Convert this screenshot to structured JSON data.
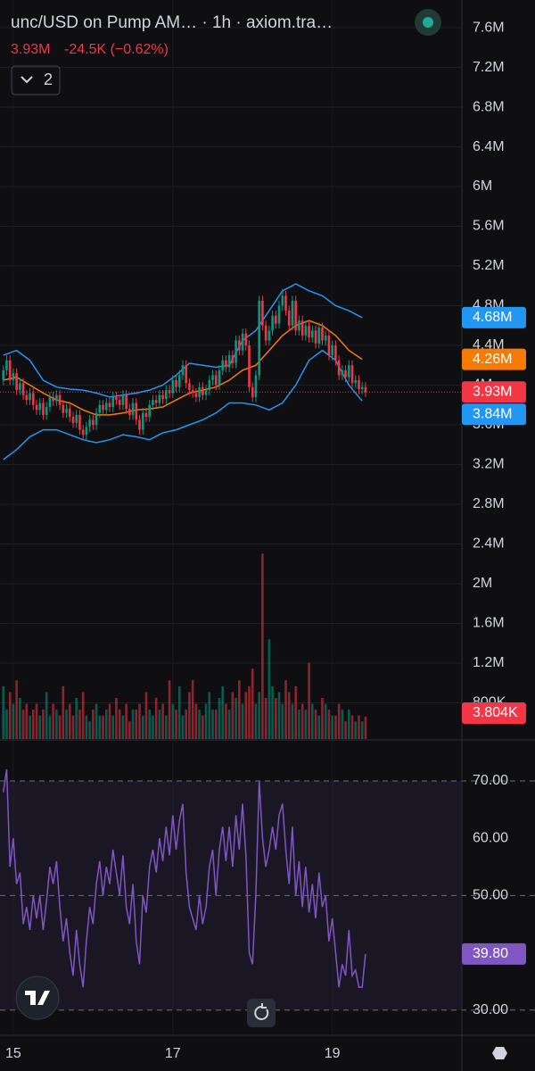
{
  "header": {
    "title": "unc/USD on Pump AM… · 1h · axiom.tra…",
    "change": "-24.5K (−0.62%)",
    "indicators_button": "2"
  },
  "chart_data": {
    "type": "candlestick",
    "up_color": "#089981",
    "down_color": "#f23645",
    "xlim": [
      -4,
      135
    ],
    "xticks": [
      {
        "value": 0,
        "label": "15"
      },
      {
        "value": 48,
        "label": "17"
      },
      {
        "value": 96,
        "label": "19"
      }
    ],
    "x": [
      -3,
      -2,
      -1,
      0,
      1,
      2,
      3,
      4,
      5,
      6,
      7,
      8,
      9,
      10,
      11,
      12,
      13,
      14,
      15,
      16,
      17,
      18,
      19,
      20,
      21,
      22,
      23,
      24,
      25,
      26,
      27,
      28,
      29,
      30,
      31,
      32,
      33,
      34,
      35,
      36,
      37,
      38,
      39,
      40,
      41,
      42,
      43,
      44,
      45,
      46,
      47,
      48,
      49,
      50,
      51,
      52,
      53,
      54,
      55,
      56,
      57,
      58,
      59,
      60,
      61,
      62,
      63,
      64,
      65,
      66,
      67,
      68,
      69,
      70,
      71,
      72,
      73,
      74,
      75,
      76,
      77,
      78,
      79,
      80,
      81,
      82,
      83,
      84,
      85,
      86,
      87,
      88,
      89,
      90,
      91,
      92,
      93,
      94,
      95,
      96,
      97,
      98,
      99,
      100,
      101,
      102,
      103,
      104,
      105,
      106
    ],
    "ylim": [
      0.436,
      7.879
    ],
    "yticks": [
      {
        "value": 7.6,
        "label": "7.6M"
      },
      {
        "value": 7.2,
        "label": "7.2M"
      },
      {
        "value": 6.8,
        "label": "6.8M"
      },
      {
        "value": 6.4,
        "label": "6.4M"
      },
      {
        "value": 6,
        "label": "6M"
      },
      {
        "value": 5.6,
        "label": "5.6M"
      },
      {
        "value": 5.2,
        "label": "5.2M"
      },
      {
        "value": 4.8,
        "label": "4.8M"
      },
      {
        "value": 4.4,
        "label": "4.4M"
      },
      {
        "value": 4,
        "label": "4M"
      },
      {
        "value": 3.6,
        "label": "3.6M"
      },
      {
        "value": 3.2,
        "label": "3.2M"
      },
      {
        "value": 2.8,
        "label": "2.8M"
      },
      {
        "value": 2.4,
        "label": "2.4M"
      },
      {
        "value": 2,
        "label": "2M"
      },
      {
        "value": 1.6,
        "label": "1.6M"
      },
      {
        "value": 1.2,
        "label": "1.2M"
      },
      {
        "value": 0.8,
        "label": "800K"
      }
    ],
    "candles": {
      "open": [
        4.05,
        4.15,
        4.25,
        4.05,
        4.12,
        3.95,
        4.02,
        3.9,
        3.85,
        3.92,
        3.8,
        3.75,
        3.82,
        3.7,
        3.78,
        3.88,
        3.84,
        3.9,
        3.8,
        3.72,
        3.76,
        3.68,
        3.62,
        3.7,
        3.55,
        3.5,
        3.58,
        3.65,
        3.6,
        3.72,
        3.8,
        3.75,
        3.82,
        3.78,
        3.88,
        3.85,
        3.8,
        3.9,
        3.76,
        3.7,
        3.82,
        3.65,
        3.55,
        3.72,
        3.68,
        3.8,
        3.85,
        3.82,
        3.9,
        3.86,
        3.95,
        3.92,
        4.05,
        3.98,
        4.1,
        4.2,
        4.02,
        3.95,
        3.92,
        3.88,
        3.98,
        3.9,
        3.95,
        4.05,
        4.1,
        4.0,
        4.15,
        4.25,
        4.18,
        4.3,
        4.22,
        4.45,
        4.35,
        4.52,
        4.4,
        3.98,
        3.88,
        4.1,
        4.85,
        4.6,
        4.45,
        4.55,
        4.7,
        4.62,
        4.8,
        4.9,
        4.75,
        4.6,
        4.85,
        4.55,
        4.65,
        4.5,
        4.6,
        4.48,
        4.55,
        4.42,
        4.58,
        4.45,
        4.5,
        4.3,
        4.4,
        4.25,
        4.1,
        4.15,
        4.08,
        4.2,
        4.02,
        4.05,
        3.96,
        3.98
      ],
      "high": [
        4.2,
        4.3,
        4.3,
        4.17,
        4.17,
        4.07,
        4.07,
        3.95,
        3.97,
        3.97,
        3.85,
        3.87,
        3.87,
        3.83,
        3.93,
        3.93,
        3.95,
        3.95,
        3.85,
        3.81,
        3.81,
        3.73,
        3.75,
        3.75,
        3.6,
        3.63,
        3.7,
        3.7,
        3.77,
        3.85,
        3.85,
        3.87,
        3.87,
        3.93,
        3.93,
        3.9,
        3.95,
        3.95,
        3.81,
        3.87,
        3.87,
        3.7,
        3.77,
        3.77,
        3.85,
        3.9,
        3.9,
        3.95,
        3.95,
        4.0,
        4.0,
        4.1,
        4.1,
        4.15,
        4.25,
        4.25,
        4.07,
        4.0,
        3.97,
        4.03,
        4.03,
        4.0,
        4.1,
        4.15,
        4.15,
        4.2,
        4.3,
        4.3,
        4.35,
        4.35,
        4.5,
        4.5,
        4.57,
        4.57,
        4.45,
        4.03,
        4.15,
        4.9,
        4.9,
        4.65,
        4.6,
        4.75,
        4.75,
        4.85,
        4.97,
        4.95,
        4.8,
        4.9,
        4.9,
        4.7,
        4.7,
        4.65,
        4.65,
        4.6,
        4.6,
        4.63,
        4.63,
        4.55,
        4.55,
        4.45,
        4.45,
        4.3,
        4.2,
        4.2,
        4.25,
        4.25,
        4.1,
        4.1,
        4.03,
        4.03
      ],
      "low": [
        4.0,
        4.1,
        4.0,
        4.0,
        3.9,
        3.9,
        3.85,
        3.8,
        3.8,
        3.75,
        3.7,
        3.7,
        3.65,
        3.65,
        3.73,
        3.79,
        3.79,
        3.75,
        3.67,
        3.67,
        3.63,
        3.57,
        3.57,
        3.5,
        3.45,
        3.45,
        3.53,
        3.55,
        3.55,
        3.67,
        3.7,
        3.7,
        3.73,
        3.73,
        3.8,
        3.75,
        3.75,
        3.71,
        3.65,
        3.65,
        3.6,
        3.5,
        3.5,
        3.63,
        3.63,
        3.75,
        3.77,
        3.77,
        3.81,
        3.81,
        3.87,
        3.87,
        3.93,
        3.93,
        4.05,
        3.97,
        3.9,
        3.87,
        3.83,
        3.83,
        3.85,
        3.85,
        3.9,
        4.0,
        3.95,
        3.95,
        4.1,
        4.13,
        4.13,
        4.17,
        4.17,
        4.3,
        4.3,
        4.35,
        3.93,
        3.83,
        3.83,
        4.05,
        4.55,
        4.4,
        4.4,
        4.5,
        4.57,
        4.57,
        4.75,
        4.7,
        4.55,
        4.55,
        4.5,
        4.5,
        4.45,
        4.45,
        4.43,
        4.43,
        4.37,
        4.37,
        4.4,
        4.4,
        4.25,
        4.25,
        4.2,
        4.05,
        4.05,
        4.03,
        4.03,
        3.97,
        3.97,
        3.91,
        3.91,
        3.88
      ],
      "close": [
        4.15,
        4.25,
        4.05,
        4.12,
        3.95,
        4.02,
        3.9,
        3.85,
        3.92,
        3.8,
        3.75,
        3.82,
        3.7,
        3.78,
        3.88,
        3.84,
        3.9,
        3.8,
        3.72,
        3.76,
        3.68,
        3.62,
        3.7,
        3.55,
        3.5,
        3.58,
        3.65,
        3.6,
        3.72,
        3.8,
        3.75,
        3.82,
        3.78,
        3.88,
        3.85,
        3.8,
        3.9,
        3.76,
        3.7,
        3.82,
        3.65,
        3.55,
        3.72,
        3.68,
        3.8,
        3.85,
        3.82,
        3.9,
        3.86,
        3.95,
        3.92,
        4.05,
        3.98,
        4.1,
        4.2,
        4.02,
        3.95,
        3.92,
        3.88,
        3.98,
        3.9,
        3.95,
        4.05,
        4.1,
        4.0,
        4.15,
        4.25,
        4.18,
        4.3,
        4.22,
        4.45,
        4.35,
        4.52,
        4.4,
        3.98,
        3.88,
        4.1,
        4.85,
        4.6,
        4.45,
        4.55,
        4.7,
        4.62,
        4.8,
        4.9,
        4.75,
        4.6,
        4.85,
        4.55,
        4.65,
        4.5,
        4.6,
        4.48,
        4.55,
        4.42,
        4.58,
        4.45,
        4.5,
        4.3,
        4.4,
        4.25,
        4.1,
        4.15,
        4.08,
        4.2,
        4.02,
        4.05,
        3.96,
        3.98,
        3.93
      ],
      "last_label": "3.93M",
      "last_color": "#f23645"
    },
    "bands": {
      "x": [
        -3,
        1,
        5,
        9,
        13,
        17,
        21,
        25,
        29,
        33,
        37,
        41,
        45,
        49,
        53,
        57,
        61,
        65,
        69,
        73,
        77,
        81,
        85,
        89,
        93,
        97,
        101,
        105
      ],
      "series": [
        {
          "name_label": "4.68M",
          "color": "#2196f3",
          "values": [
            4.3,
            4.35,
            4.25,
            4.05,
            3.98,
            3.96,
            3.95,
            3.92,
            3.88,
            3.9,
            3.92,
            3.95,
            4.0,
            4.1,
            4.22,
            4.2,
            4.18,
            4.2,
            4.45,
            4.55,
            4.75,
            4.95,
            5.02,
            4.95,
            4.9,
            4.8,
            4.75,
            4.68
          ]
        },
        {
          "name_label": "4.26M",
          "color": "#f57c00",
          "values": [
            4.05,
            4.08,
            4.0,
            3.92,
            3.85,
            3.82,
            3.75,
            3.7,
            3.7,
            3.72,
            3.75,
            3.76,
            3.78,
            3.85,
            3.92,
            3.95,
            3.98,
            4.05,
            4.15,
            4.2,
            4.35,
            4.5,
            4.6,
            4.65,
            4.6,
            4.5,
            4.35,
            4.26
          ]
        },
        {
          "name_label": "3.84M",
          "color": "#2196f3",
          "values": [
            3.25,
            3.35,
            3.48,
            3.55,
            3.55,
            3.5,
            3.45,
            3.42,
            3.45,
            3.5,
            3.48,
            3.45,
            3.52,
            3.55,
            3.6,
            3.65,
            3.72,
            3.82,
            3.82,
            3.8,
            3.75,
            3.82,
            4.0,
            4.25,
            4.35,
            4.25,
            4.0,
            3.84
          ]
        }
      ]
    },
    "volume": {
      "ylim": [
        0,
        126
      ],
      "last_label": "3.804K",
      "values": [
        9,
        5,
        8,
        6,
        10,
        7,
        5,
        6,
        4,
        5,
        6,
        4,
        5,
        8,
        4,
        6,
        5,
        4,
        9,
        5,
        6,
        4,
        7,
        5,
        8,
        4,
        3,
        5,
        6,
        4,
        4,
        5,
        6,
        4,
        7,
        5,
        4,
        6,
        3,
        5,
        5,
        6,
        4,
        8,
        5,
        4,
        7,
        5,
        6,
        4,
        10,
        6,
        5,
        9,
        4,
        5,
        8,
        10,
        6,
        5,
        4,
        6,
        8,
        5,
        5,
        7,
        9,
        6,
        5,
        8,
        7,
        10,
        6,
        8,
        9,
        12,
        6,
        8,
        31.6,
        7,
        17,
        9,
        7,
        8,
        6,
        10,
        8,
        6,
        9,
        5,
        6,
        5,
        13,
        6,
        5,
        4,
        7,
        6,
        5,
        4,
        4,
        6,
        5,
        3,
        5,
        4,
        3,
        4,
        3,
        3.804
      ]
    },
    "rsi": {
      "color": "#7e57c2",
      "ylim": [
        25.6,
        77.0
      ],
      "levels": [
        70,
        50,
        30
      ],
      "last_label": "39.80",
      "yticks": [
        {
          "value": 70,
          "label": "70.00"
        },
        {
          "value": 60,
          "label": "60.00"
        },
        {
          "value": 50,
          "label": "50.00"
        },
        {
          "value": 30,
          "label": "30.00"
        }
      ],
      "values": [
        68,
        72,
        55,
        60,
        52,
        54,
        45,
        48,
        44,
        50,
        46,
        50,
        44,
        49,
        55,
        52,
        56,
        48,
        42,
        46,
        40,
        36,
        44,
        38,
        34,
        42,
        48,
        45,
        52,
        56,
        50,
        55,
        52,
        58,
        54,
        50,
        57,
        48,
        45,
        52,
        42,
        38,
        50,
        47,
        55,
        58,
        54,
        60,
        56,
        62,
        57,
        64,
        58,
        63,
        66,
        54,
        48,
        46,
        44,
        50,
        45,
        48,
        55,
        58,
        50,
        58,
        62,
        56,
        62,
        55,
        64,
        58,
        66,
        57,
        40,
        38,
        50,
        70,
        60,
        55,
        58,
        62,
        58,
        64,
        66,
        58,
        52,
        62,
        50,
        56,
        48,
        55,
        47,
        52,
        46,
        54,
        48,
        50,
        42,
        46,
        40,
        34,
        38,
        36,
        44,
        36,
        37,
        34,
        34,
        39.8
      ]
    }
  }
}
